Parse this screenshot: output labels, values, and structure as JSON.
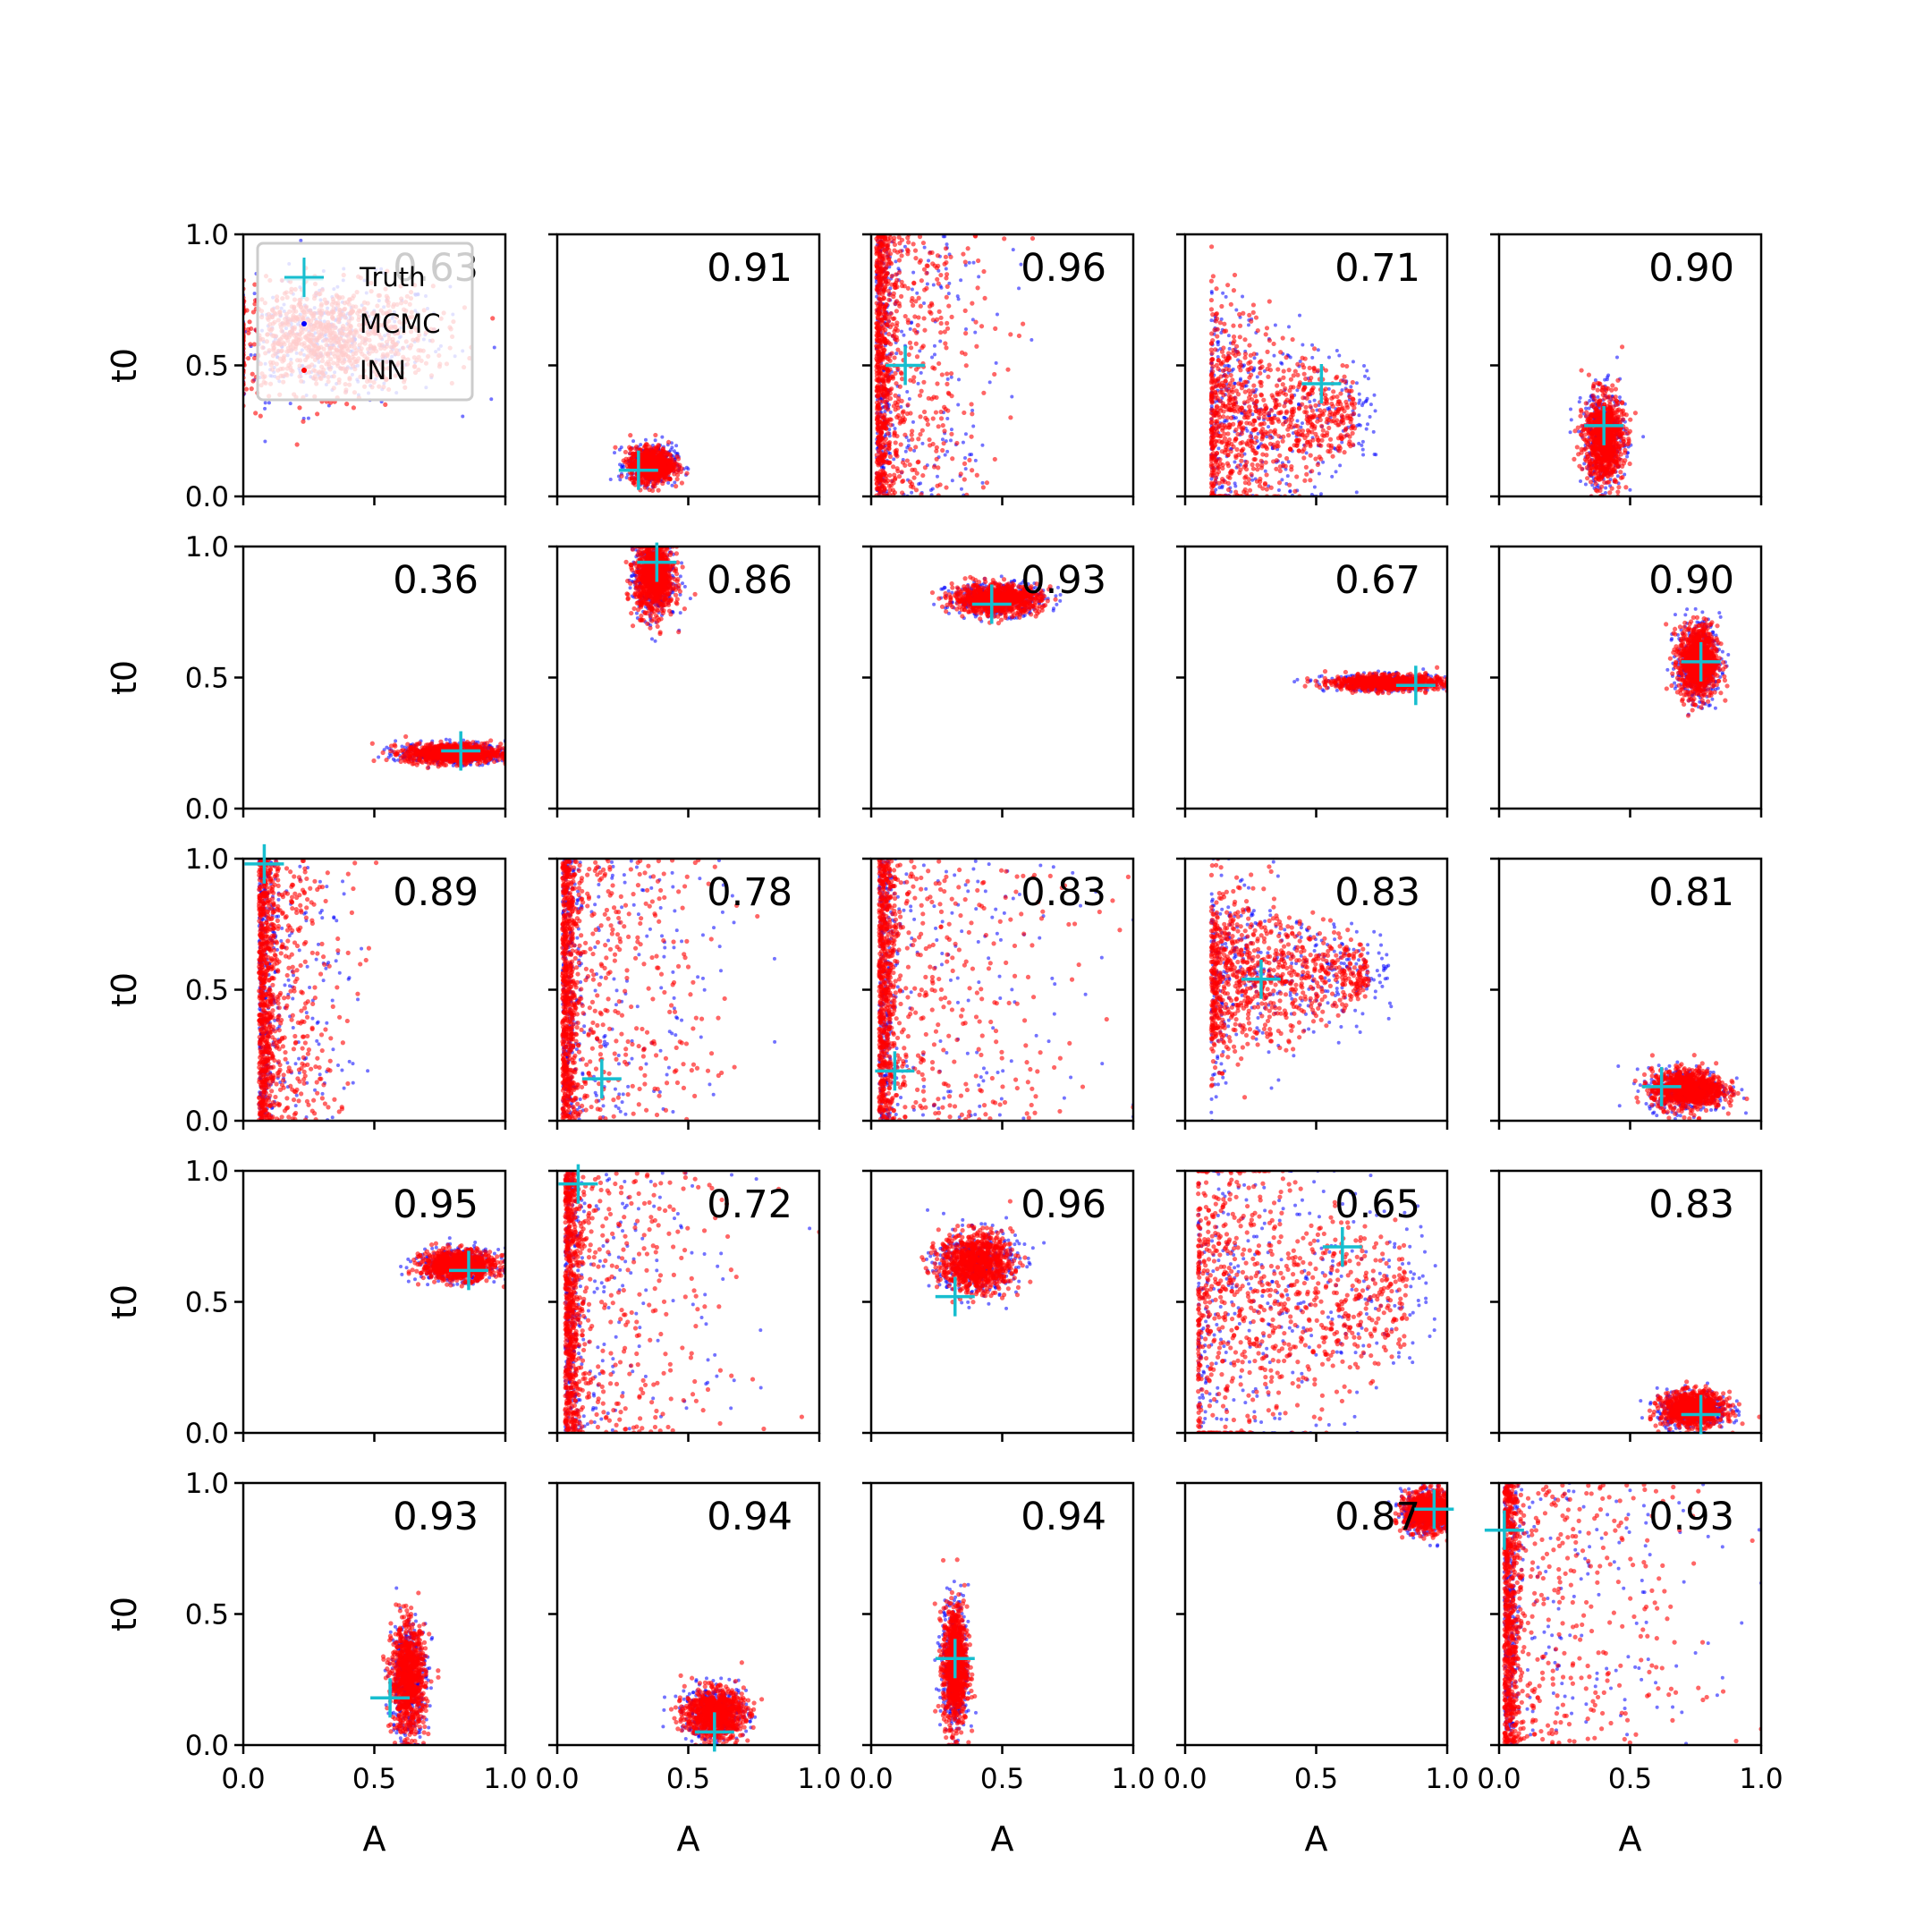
{
  "chart_data": {
    "type": "scatter",
    "layout": "5x5 grid of scatter panels",
    "xlabel": "A",
    "ylabel": "t0",
    "xlim": [
      0,
      1
    ],
    "ylim": [
      0,
      1
    ],
    "xticks": [
      "0.0",
      "0.5",
      "1.0"
    ],
    "yticks": [
      "0.0",
      "0.5",
      "1.0"
    ],
    "grid": false,
    "legend": {
      "placement": "top-left of first panel",
      "entries": [
        {
          "label": "Truth",
          "marker": "plus",
          "color": "#17becf"
        },
        {
          "label": "MCMC",
          "marker": "dot",
          "color": "#0000ff"
        },
        {
          "label": "INN",
          "marker": "dot",
          "color": "#ff0000"
        }
      ]
    },
    "colors": {
      "truth": "#17becf",
      "mcmc": "#0000ff",
      "inn": "#ff0000"
    },
    "panels": [
      {
        "row": 0,
        "col": 0,
        "value": "0.63",
        "truth": [
          0.23,
          0.83
        ],
        "shape": "smear",
        "center": [
          0.32,
          0.6
        ],
        "spread": [
          0.4,
          0.25
        ]
      },
      {
        "row": 0,
        "col": 1,
        "value": "0.91",
        "truth": [
          0.31,
          0.1
        ],
        "shape": "blob",
        "center": [
          0.36,
          0.12
        ],
        "spread": [
          0.09,
          0.07
        ]
      },
      {
        "row": 0,
        "col": 2,
        "value": "0.96",
        "truth": [
          0.13,
          0.5
        ],
        "shape": "wall",
        "center": [
          0.02,
          0.5
        ],
        "spread": [
          0.4,
          0.5
        ]
      },
      {
        "row": 0,
        "col": 3,
        "value": "0.71",
        "truth": [
          0.52,
          0.43
        ],
        "shape": "fan",
        "center": [
          0.1,
          0.3
        ],
        "spread": [
          0.55,
          0.22
        ]
      },
      {
        "row": 0,
        "col": 4,
        "value": "0.90",
        "truth": [
          0.4,
          0.27
        ],
        "shape": "blob",
        "center": [
          0.4,
          0.22
        ],
        "spread": [
          0.08,
          0.18
        ]
      },
      {
        "row": 1,
        "col": 0,
        "value": "0.36",
        "truth": [
          0.83,
          0.22
        ],
        "shape": "blob",
        "center": [
          0.8,
          0.21
        ],
        "spread": [
          0.2,
          0.04
        ]
      },
      {
        "row": 1,
        "col": 1,
        "value": "0.86",
        "truth": [
          0.38,
          0.94
        ],
        "shape": "blob",
        "center": [
          0.37,
          0.88
        ],
        "spread": [
          0.08,
          0.15
        ]
      },
      {
        "row": 1,
        "col": 2,
        "value": "0.93",
        "truth": [
          0.46,
          0.78
        ],
        "shape": "blob",
        "center": [
          0.48,
          0.8
        ],
        "spread": [
          0.18,
          0.06
        ]
      },
      {
        "row": 1,
        "col": 3,
        "value": "0.67",
        "truth": [
          0.88,
          0.47
        ],
        "shape": "blob",
        "center": [
          0.77,
          0.48
        ],
        "spread": [
          0.22,
          0.03
        ]
      },
      {
        "row": 1,
        "col": 4,
        "value": "0.90",
        "truth": [
          0.77,
          0.56
        ],
        "shape": "blob",
        "center": [
          0.76,
          0.56
        ],
        "spread": [
          0.08,
          0.15
        ]
      },
      {
        "row": 2,
        "col": 0,
        "value": "0.89",
        "truth": [
          0.08,
          0.98
        ],
        "shape": "wall",
        "center": [
          0.06,
          0.6
        ],
        "spread": [
          0.3,
          0.4
        ]
      },
      {
        "row": 2,
        "col": 1,
        "value": "0.78",
        "truth": [
          0.17,
          0.16
        ],
        "shape": "wall",
        "center": [
          0.02,
          0.5
        ],
        "spread": [
          0.55,
          0.5
        ]
      },
      {
        "row": 2,
        "col": 2,
        "value": "0.83",
        "truth": [
          0.09,
          0.19
        ],
        "shape": "wall",
        "center": [
          0.03,
          0.5
        ],
        "spread": [
          0.7,
          0.5
        ]
      },
      {
        "row": 2,
        "col": 3,
        "value": "0.83",
        "truth": [
          0.29,
          0.54
        ],
        "shape": "fan",
        "center": [
          0.1,
          0.55
        ],
        "spread": [
          0.6,
          0.18
        ]
      },
      {
        "row": 2,
        "col": 4,
        "value": "0.81",
        "truth": [
          0.62,
          0.13
        ],
        "shape": "blob",
        "center": [
          0.72,
          0.12
        ],
        "spread": [
          0.15,
          0.08
        ]
      },
      {
        "row": 3,
        "col": 0,
        "value": "0.95",
        "truth": [
          0.86,
          0.62
        ],
        "shape": "blob",
        "center": [
          0.82,
          0.64
        ],
        "spread": [
          0.15,
          0.06
        ]
      },
      {
        "row": 3,
        "col": 1,
        "value": "0.72",
        "truth": [
          0.08,
          0.95
        ],
        "shape": "wall",
        "center": [
          0.03,
          0.5
        ],
        "spread": [
          0.6,
          0.5
        ]
      },
      {
        "row": 3,
        "col": 2,
        "value": "0.96",
        "truth": [
          0.32,
          0.52
        ],
        "shape": "blob",
        "center": [
          0.4,
          0.65
        ],
        "spread": [
          0.15,
          0.12
        ]
      },
      {
        "row": 3,
        "col": 3,
        "value": "0.65",
        "truth": [
          0.6,
          0.71
        ],
        "shape": "fan",
        "center": [
          0.05,
          0.5
        ],
        "spread": [
          0.8,
          0.35
        ]
      },
      {
        "row": 3,
        "col": 4,
        "value": "0.83",
        "truth": [
          0.77,
          0.07
        ],
        "shape": "blob",
        "center": [
          0.74,
          0.09
        ],
        "spread": [
          0.13,
          0.07
        ]
      },
      {
        "row": 4,
        "col": 0,
        "value": "0.93",
        "truth": [
          0.56,
          0.18
        ],
        "shape": "blob",
        "center": [
          0.63,
          0.25
        ],
        "spread": [
          0.07,
          0.22
        ]
      },
      {
        "row": 4,
        "col": 1,
        "value": "0.94",
        "truth": [
          0.6,
          0.05
        ],
        "shape": "blob",
        "center": [
          0.6,
          0.12
        ],
        "spread": [
          0.12,
          0.1
        ]
      },
      {
        "row": 4,
        "col": 2,
        "value": "0.94",
        "truth": [
          0.32,
          0.33
        ],
        "shape": "blob",
        "center": [
          0.32,
          0.3
        ],
        "spread": [
          0.05,
          0.25
        ]
      },
      {
        "row": 4,
        "col": 3,
        "value": "0.87",
        "truth": [
          0.95,
          0.9
        ],
        "shape": "blob",
        "center": [
          0.93,
          0.89
        ],
        "spread": [
          0.1,
          0.08
        ]
      },
      {
        "row": 4,
        "col": 4,
        "value": "0.93",
        "truth": [
          0.02,
          0.82
        ],
        "shape": "wall",
        "center": [
          0.02,
          0.5
        ],
        "spread": [
          0.7,
          0.5
        ]
      }
    ]
  }
}
